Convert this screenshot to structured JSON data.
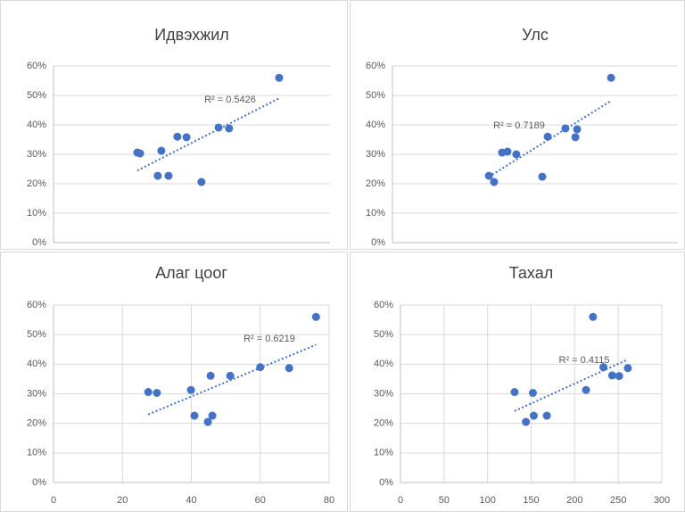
{
  "chart_data": [
    {
      "type": "scatter",
      "title": "Идвэхжил",
      "color": "#4472c4",
      "grid": true,
      "trendline": true,
      "annotation": "R² = 0.5426",
      "x": [
        30.3,
        31.3,
        39.0,
        37.7,
        41.6,
        44.8,
        48.1,
        53.5,
        59.7,
        63.5,
        81.6
      ],
      "values": [
        30.6,
        30.3,
        31.2,
        22.7,
        22.7,
        36.0,
        35.8,
        20.6,
        39.1,
        38.8,
        56.0
      ],
      "xlim": [
        0,
        100
      ],
      "ylim": [
        0,
        60
      ],
      "yticks": [
        {
          "value": 0,
          "label": "0%"
        },
        {
          "value": 10,
          "label": "10%"
        },
        {
          "value": 20,
          "label": "20%"
        },
        {
          "value": 30,
          "label": "30%"
        },
        {
          "value": 40,
          "label": "40%"
        },
        {
          "value": 50,
          "label": "50%"
        },
        {
          "value": 60,
          "label": "60%"
        }
      ]
    },
    {
      "type": "scatter",
      "title": "Улс",
      "color": "#4472c4",
      "grid": true,
      "trendline": true,
      "annotation": "R² = 0.7189",
      "x": [
        33.8,
        35.6,
        38.4,
        40.3,
        43.4,
        52.5,
        54.4,
        60.6,
        64.1,
        64.7,
        76.6
      ],
      "values": [
        22.7,
        20.6,
        30.6,
        30.9,
        30.0,
        22.4,
        36.0,
        38.8,
        35.8,
        38.5,
        56.0
      ],
      "xlim": [
        0,
        100
      ],
      "ylim": [
        0,
        60
      ],
      "yticks": [
        {
          "value": 0,
          "label": "0%"
        },
        {
          "value": 10,
          "label": "10%"
        },
        {
          "value": 20,
          "label": "20%"
        },
        {
          "value": 30,
          "label": "30%"
        },
        {
          "value": 40,
          "label": "40%"
        },
        {
          "value": 50,
          "label": "50%"
        },
        {
          "value": 60,
          "label": "60%"
        }
      ]
    },
    {
      "type": "scatter",
      "title": "Алаг цоог",
      "color": "#4472c4",
      "grid": true,
      "trendline": true,
      "annotation": "R² = 0.6219",
      "x": [
        27.5,
        30.0,
        39.9,
        40.9,
        44.8,
        45.6,
        46.1,
        51.3,
        60.0,
        68.4,
        76.2
      ],
      "values": [
        30.6,
        30.3,
        31.3,
        22.6,
        20.5,
        36.1,
        22.6,
        36.1,
        39.0,
        38.7,
        56.0
      ],
      "xlim": [
        0,
        80
      ],
      "xticks": [
        0,
        20,
        40,
        60,
        80
      ],
      "ylim": [
        0,
        60
      ],
      "yticks": [
        {
          "value": 0,
          "label": "0%"
        },
        {
          "value": 10,
          "label": "10%"
        },
        {
          "value": 20,
          "label": "20%"
        },
        {
          "value": 30,
          "label": "30%"
        },
        {
          "value": 40,
          "label": "40%"
        },
        {
          "value": 50,
          "label": "50%"
        },
        {
          "value": 60,
          "label": "60%"
        }
      ]
    },
    {
      "type": "scatter",
      "title": "Тахал",
      "color": "#4472c4",
      "grid": true,
      "trendline": true,
      "annotation": "R² = 0.4115",
      "x": [
        131,
        144,
        152,
        153,
        168,
        213,
        221,
        233,
        243,
        251,
        261
      ],
      "values": [
        30.6,
        20.5,
        30.3,
        22.6,
        22.6,
        31.3,
        56.0,
        39.0,
        36.2,
        36.0,
        38.7
      ],
      "xlim": [
        0,
        300
      ],
      "xticks": [
        0,
        50,
        100,
        150,
        200,
        250,
        300
      ],
      "ylim": [
        0,
        60
      ],
      "yticks": [
        {
          "value": 0,
          "label": "0%"
        },
        {
          "value": 10,
          "label": "10%"
        },
        {
          "value": 20,
          "label": "20%"
        },
        {
          "value": 30,
          "label": "30%"
        },
        {
          "value": 40,
          "label": "40%"
        },
        {
          "value": 50,
          "label": "50%"
        },
        {
          "value": 60,
          "label": "60%"
        }
      ]
    }
  ]
}
